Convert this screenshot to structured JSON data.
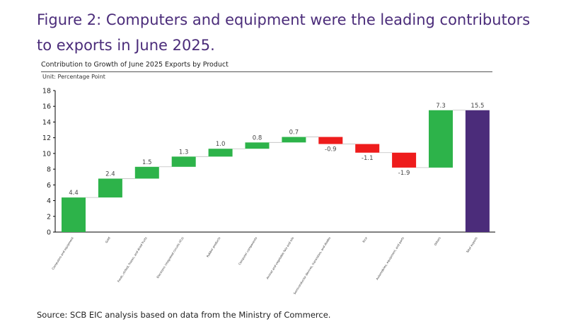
{
  "figure_title": "Figure 2: Computers and equipment were the leading contributors to exports in June 2025.",
  "source": "Source: SCB EIC analysis based on data from the Ministry of Commerce.",
  "colors": {
    "title": "#4b2c7a",
    "increase": "#2db34a",
    "decrease": "#ee1c1c",
    "total": "#4b2c7a",
    "connector": "#bfbfbf",
    "axis": "#000000"
  },
  "chart_data": {
    "type": "bar",
    "subtype": "waterfall",
    "title": "Contribution to Growth of June 2025 Exports by Product",
    "unit_label": "Unit: Percentage Point",
    "ylim": [
      0,
      18
    ],
    "yticks": [
      0,
      2,
      4,
      6,
      8,
      10,
      12,
      14,
      16,
      18
    ],
    "grid": false,
    "categories": [
      "Computers and equipment",
      "Gold",
      "Fresh, chilled, frozen, and dried fruits",
      "Electronic integrated circuits (ICs)",
      "Rubber products",
      "Computer components",
      "Animal and vegetable fats and oils",
      "Semiconductor devices, transistors, and diodes",
      "Rice",
      "Automobiles, equipment, and parts",
      "Others",
      "Total exports"
    ],
    "values": [
      4.4,
      2.4,
      1.5,
      1.3,
      1.0,
      0.8,
      0.7,
      -0.9,
      -1.1,
      -1.9,
      7.3,
      15.5
    ],
    "value_labels": [
      "4.4",
      "2.4",
      "1.5",
      "1.3",
      "1.0",
      "0.8",
      "0.7",
      "-0.9",
      "-1.1",
      "-1.9",
      "7.3",
      "15.5"
    ],
    "is_total": [
      false,
      false,
      false,
      false,
      false,
      false,
      false,
      false,
      false,
      false,
      false,
      true
    ]
  }
}
